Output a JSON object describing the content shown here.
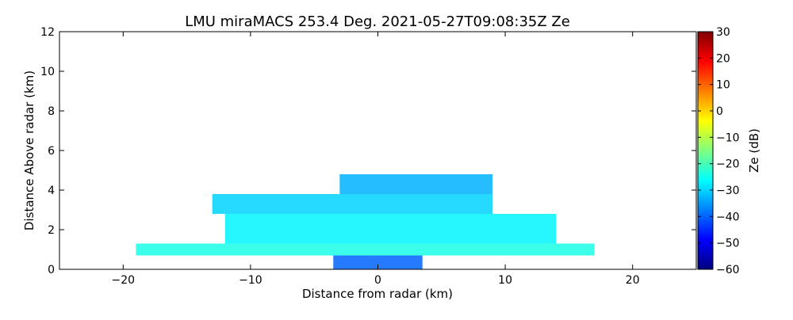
{
  "chart_data": {
    "type": "heatmap",
    "title": "LMU miraMACS 253.4 Deg. 2021-05-27T09:08:35Z  Ze",
    "xlabel": "Distance from radar (km)",
    "ylabel": "Distance Above radar  (km)",
    "xlim": [
      -25,
      25
    ],
    "ylim": [
      0,
      12
    ],
    "x_ticks": [
      -20,
      -10,
      0,
      10,
      20
    ],
    "y_ticks": [
      0,
      2,
      4,
      6,
      8,
      10,
      12
    ],
    "colorbar": {
      "label": "Ze (dB)",
      "range": [
        -60,
        30
      ],
      "ticks": [
        30,
        20,
        10,
        0,
        -10,
        -20,
        -30,
        -40,
        -50,
        -60
      ],
      "colormap": [
        "#00007f",
        "#0000ff",
        "#007fff",
        "#00ffff",
        "#7fff7f",
        "#ffff00",
        "#ff7f00",
        "#ff0000",
        "#7f0000"
      ]
    },
    "regions": [
      {
        "x_range": [
          -19,
          17
        ],
        "y_range": [
          0.7,
          1.3
        ],
        "ze": -24
      },
      {
        "x_range": [
          -12,
          14
        ],
        "y_range": [
          1.3,
          2.8
        ],
        "ze": -27
      },
      {
        "x_range": [
          -13,
          9
        ],
        "y_range": [
          2.8,
          3.8
        ],
        "ze": -30
      },
      {
        "x_range": [
          -3,
          9
        ],
        "y_range": [
          3.8,
          4.8
        ],
        "ze": -33
      },
      {
        "x_range": [
          -3.5,
          3.5
        ],
        "y_range": [
          0,
          0.7
        ],
        "ze": -40
      }
    ],
    "grid": false
  }
}
